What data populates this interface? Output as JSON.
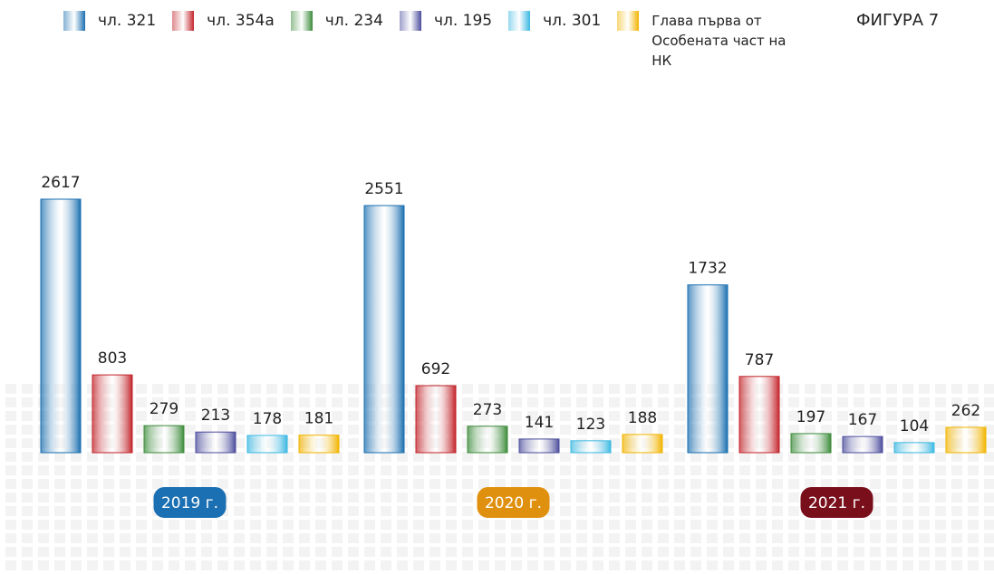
{
  "chart_data": {
    "type": "bar",
    "title": "ФИГУРА 7",
    "categories": [
      "2019 г.",
      "2020 г.",
      "2021 г."
    ],
    "category_colors": [
      "#1b6fb3",
      "#e0900f",
      "#7a0f1c"
    ],
    "series": [
      {
        "name": "чл. 321",
        "color": "#1a6fb0",
        "values": [
          2617,
          2551,
          1732
        ]
      },
      {
        "name": "чл. 354а",
        "color": "#c3242b",
        "values": [
          803,
          692,
          787
        ]
      },
      {
        "name": "чл. 234",
        "color": "#3c8c3a",
        "values": [
          279,
          273,
          197
        ]
      },
      {
        "name": "чл. 195",
        "color": "#4b4c9c",
        "values": [
          213,
          141,
          167
        ]
      },
      {
        "name": "чл. 301",
        "color": "#3bb8e2",
        "values": [
          178,
          123,
          104
        ]
      },
      {
        "name": "Глава първа от Особената част на НК",
        "color": "#f2b400",
        "values": [
          181,
          188,
          262
        ]
      }
    ]
  }
}
